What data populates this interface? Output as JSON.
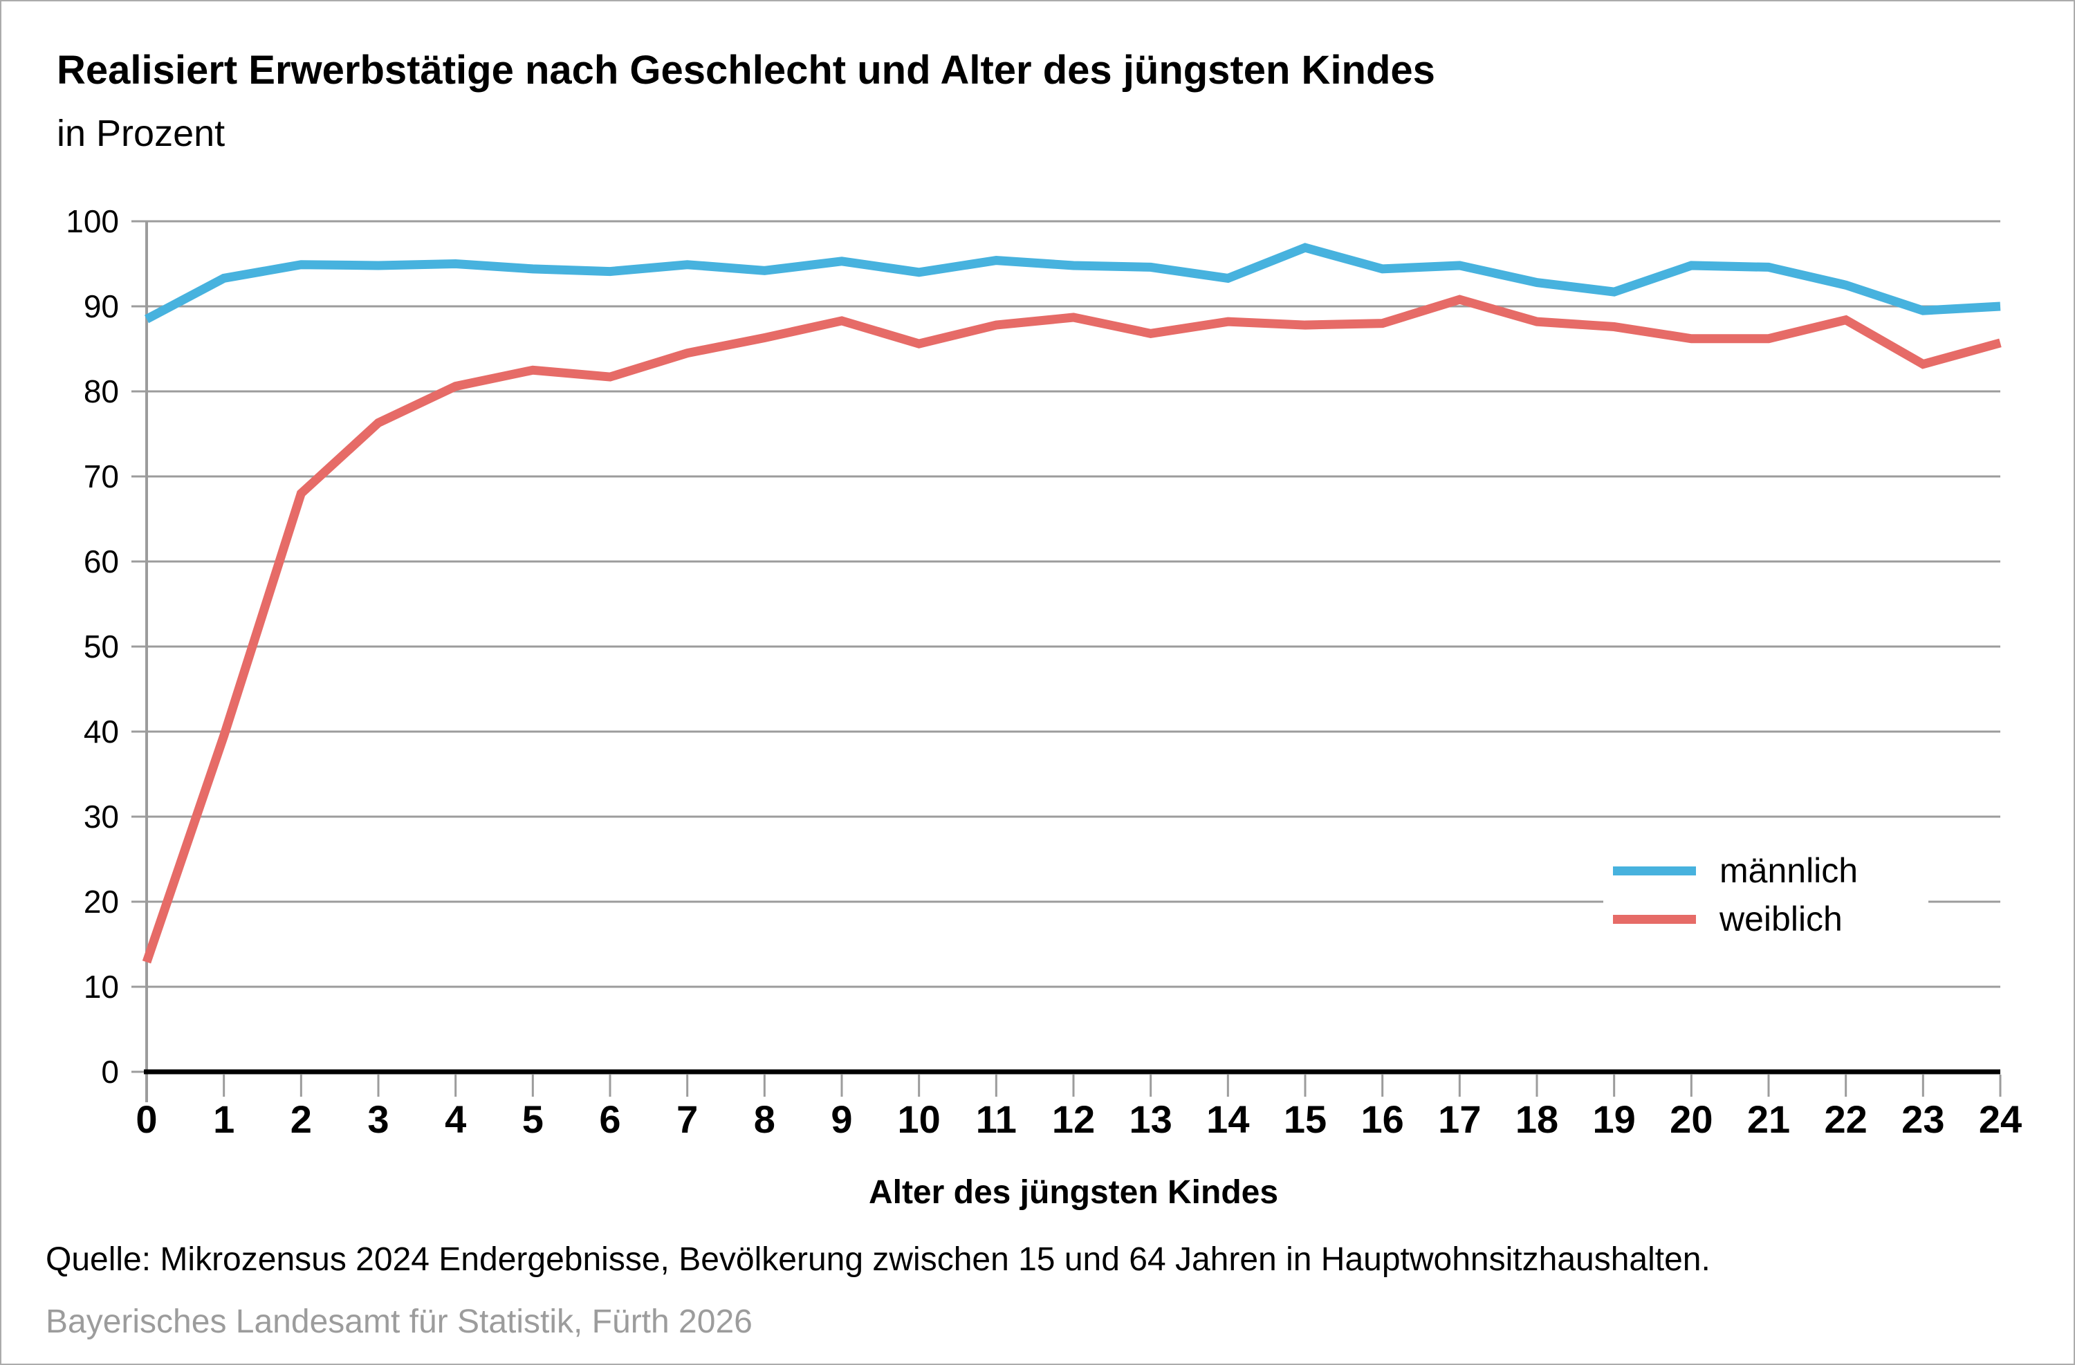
{
  "header": {
    "title": "Realisiert Erwerbstätige nach Geschlecht und Alter des jüngsten Kindes",
    "subtitle": "in Prozent"
  },
  "chart_data": {
    "type": "line",
    "title": "Realisiert Erwerbstätige nach Geschlecht und Alter des jüngsten Kindes",
    "subtitle": "in Prozent",
    "categories": [
      0,
      1,
      2,
      3,
      4,
      5,
      6,
      7,
      8,
      9,
      10,
      11,
      12,
      13,
      14,
      15,
      16,
      17,
      18,
      19,
      20,
      21,
      22,
      23,
      24
    ],
    "series": [
      {
        "name": "männlich",
        "color": "#47B2DE",
        "values": [
          88.5,
          93.3,
          94.9,
          94.8,
          95.0,
          94.4,
          94.1,
          94.9,
          94.2,
          95.3,
          94.0,
          95.4,
          94.8,
          94.6,
          93.3,
          96.9,
          94.4,
          94.8,
          92.8,
          91.7,
          94.8,
          94.6,
          92.5,
          89.5,
          90.0
        ]
      },
      {
        "name": "weiblich",
        "color": "#E66B67",
        "values": [
          12.9,
          39.5,
          68.0,
          76.3,
          80.6,
          82.5,
          81.7,
          84.5,
          86.3,
          88.3,
          85.6,
          87.8,
          88.7,
          86.8,
          88.2,
          87.8,
          88.0,
          90.8,
          88.2,
          87.6,
          86.2,
          86.2,
          88.4,
          83.2,
          85.7
        ]
      }
    ],
    "xlabel": "Alter des jüngsten Kindes",
    "ylabel": "in Prozent",
    "ylim": [
      0,
      100
    ],
    "ytick_step": 10,
    "grid": true,
    "grid_color": "#9C9C9C",
    "axis_color": "#000000",
    "legend_position": "inside-right"
  },
  "footer": {
    "source": "Quelle: Mikrozensus 2024 Endergebnisse, Bevölkerung zwischen 15 und 64 Jahren in Hauptwohnsitzhaushalten.",
    "publisher": "Bayerisches Landesamt für Statistik, Fürth 2026"
  }
}
